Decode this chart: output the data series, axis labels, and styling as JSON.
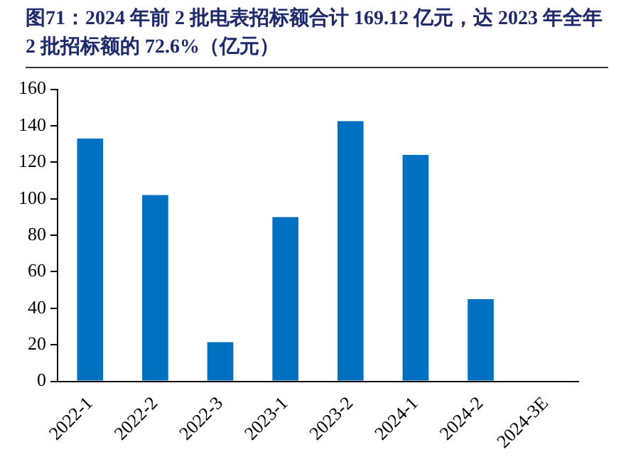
{
  "chart_data": {
    "type": "bar",
    "title": "图71：2024 年前 2 批电表招标额合计 169.12 亿元，达 2023 年全年 2 批招标额的 72.6%（亿元）",
    "categories": [
      "2022-1",
      "2022-2",
      "2022-3",
      "2023-1",
      "2023-2",
      "2024-1",
      "2024-2",
      "2024-3E"
    ],
    "values": [
      133,
      102,
      21.5,
      90,
      142.5,
      124,
      45,
      null
    ],
    "color": "#0070c0",
    "ylim": [
      0,
      160
    ],
    "yticks": [
      0,
      20,
      40,
      60,
      80,
      100,
      120,
      140,
      160
    ],
    "grid": false,
    "legend": false
  }
}
